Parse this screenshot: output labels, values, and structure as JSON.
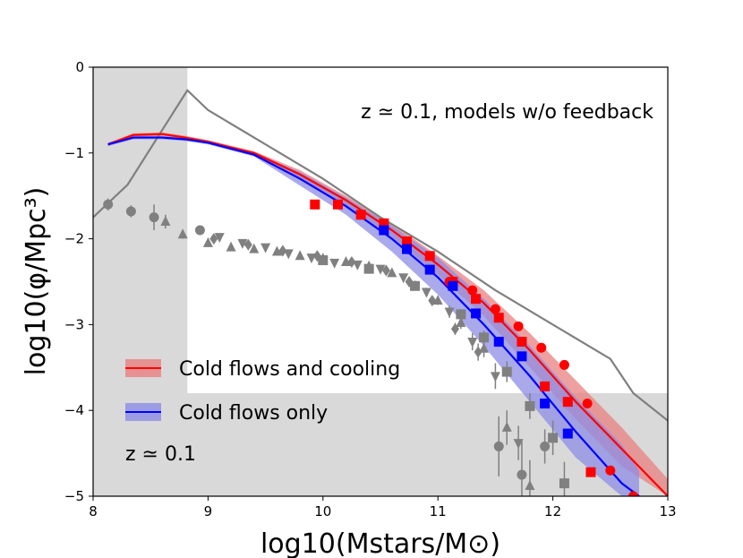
{
  "chart_data": {
    "type": "scatter",
    "title": "",
    "xlabel": "log10(Mstars/M⊙)",
    "ylabel": "log10(φ/Mpc³)",
    "xlim": [
      8,
      13
    ],
    "ylim": [
      -5,
      0
    ],
    "x_ticks": [
      "8",
      "9",
      "10",
      "11",
      "12",
      "13"
    ],
    "y_ticks": [
      "0",
      "−1",
      "−2",
      "−3",
      "−4",
      "−5"
    ],
    "annotation_top": "z ≃ 0.1, models w/o feedback",
    "annotation_bottom": "z ≃ 0.1",
    "legend": {
      "position": "lower-left",
      "entries": [
        "Cold flows and cooling",
        "Cold flows only"
      ]
    },
    "excluded_regions": [
      {
        "x": [
          8,
          8.82
        ],
        "y": [
          -5,
          0
        ],
        "color": "#d9d9d9"
      },
      {
        "x": [
          8,
          13
        ],
        "y": [
          -5,
          -3.8
        ],
        "color": "#d9d9d9"
      }
    ],
    "colors": {
      "red": "#ff0000",
      "blue": "#0000ff",
      "grey": "#808080",
      "red_band": "#e88080",
      "blue_band": "#8c8ce6",
      "shade": "#d9d9d9"
    },
    "series": [
      {
        "name": "Gray model (no cooling)",
        "kind": "line",
        "color": "#808080",
        "x": [
          8.0,
          8.3,
          8.82,
          9.0,
          9.5,
          10.0,
          10.5,
          11.0,
          11.5,
          12.0,
          12.5,
          12.7,
          13.0
        ],
        "y": [
          -1.75,
          -1.37,
          -0.27,
          -0.5,
          -0.9,
          -1.3,
          -1.75,
          -2.15,
          -2.6,
          -3.0,
          -3.4,
          -3.8,
          -4.12
        ]
      },
      {
        "name": "Cold flows and cooling",
        "kind": "line",
        "color": "#ff0000",
        "x": [
          8.13,
          8.35,
          8.6,
          8.8,
          9.0,
          9.4,
          9.8,
          10.2,
          10.6,
          11.0,
          11.4,
          11.8,
          12.2,
          12.6,
          13.0
        ],
        "y": [
          -0.9,
          -0.79,
          -0.78,
          -0.82,
          -0.87,
          -1.0,
          -1.25,
          -1.55,
          -1.9,
          -2.3,
          -2.75,
          -3.3,
          -3.9,
          -4.45,
          -5.0
        ],
        "band_upper": [
          -0.88,
          -0.77,
          -0.76,
          -0.8,
          -0.85,
          -0.98,
          -1.2,
          -1.5,
          -1.82,
          -2.2,
          -2.6,
          -3.1,
          -3.65,
          -4.2,
          -4.8
        ],
        "band_lower": [
          -0.92,
          -0.81,
          -0.8,
          -0.84,
          -0.89,
          -1.02,
          -1.3,
          -1.62,
          -1.98,
          -2.42,
          -2.9,
          -3.5,
          -4.1,
          -4.65,
          -5.0
        ]
      },
      {
        "name": "Cold flows only",
        "kind": "line",
        "color": "#0000ff",
        "x": [
          8.13,
          8.35,
          8.6,
          8.8,
          9.0,
          9.4,
          9.8,
          10.2,
          10.6,
          11.0,
          11.4,
          11.8,
          12.2,
          12.6,
          12.75
        ],
        "y": [
          -0.9,
          -0.82,
          -0.82,
          -0.84,
          -0.88,
          -1.02,
          -1.3,
          -1.62,
          -2.0,
          -2.45,
          -3.0,
          -3.6,
          -4.25,
          -4.85,
          -5.0
        ],
        "band_upper": [
          -0.88,
          -0.8,
          -0.8,
          -0.82,
          -0.86,
          -1.0,
          -1.22,
          -1.52,
          -1.85,
          -2.22,
          -2.7,
          -3.25,
          -3.85,
          -4.4,
          -4.7
        ],
        "band_lower": [
          -0.92,
          -0.84,
          -0.84,
          -0.86,
          -0.9,
          -1.04,
          -1.38,
          -1.72,
          -2.15,
          -2.65,
          -3.25,
          -3.9,
          -4.55,
          -5.0,
          -5.0
        ]
      },
      {
        "name": "Red squares",
        "kind": "markers",
        "marker": "square",
        "color": "#ff0000",
        "x": [
          9.93,
          10.13,
          10.33,
          10.53,
          10.73,
          10.93,
          11.13,
          11.33,
          11.53,
          11.73,
          11.93,
          12.13,
          12.33
        ],
        "y": [
          -1.6,
          -1.6,
          -1.72,
          -1.82,
          -2.03,
          -2.2,
          -2.5,
          -2.7,
          -2.92,
          -3.2,
          -3.72,
          -3.9,
          -4.72
        ]
      },
      {
        "name": "Red circles",
        "kind": "markers",
        "marker": "circle",
        "color": "#ff0000",
        "x": [
          11.1,
          11.3,
          11.5,
          11.7,
          11.9,
          12.1,
          12.3,
          12.5,
          12.7
        ],
        "y": [
          -2.5,
          -2.6,
          -2.82,
          -3.02,
          -3.27,
          -3.47,
          -3.92,
          -4.7,
          -5.0
        ]
      },
      {
        "name": "Blue squares",
        "kind": "markers",
        "marker": "square",
        "color": "#0000ff",
        "x": [
          10.53,
          10.73,
          10.93,
          11.13,
          11.33,
          11.53,
          11.73,
          11.93,
          12.13
        ],
        "y": [
          -1.9,
          -2.12,
          -2.36,
          -2.55,
          -2.87,
          -3.2,
          -3.37,
          -3.92,
          -4.27
        ]
      },
      {
        "name": "Observations (circles)",
        "kind": "markers",
        "marker": "circle",
        "color": "#808080",
        "x": [
          8.13,
          8.33,
          8.53,
          8.93,
          11.53,
          11.73,
          11.93
        ],
        "y": [
          -1.6,
          -1.68,
          -1.75,
          -1.9,
          -4.42,
          -4.75,
          -4.42
        ],
        "err": [
          0.07,
          0.07,
          0.15,
          0.05,
          0.35,
          0.4,
          0.2
        ]
      },
      {
        "name": "Observations (triangles up)",
        "kind": "markers",
        "marker": "triangle-up",
        "color": "#808080",
        "x": [
          8.63,
          8.78,
          9.0,
          9.2,
          9.4,
          9.6,
          9.8,
          10.0,
          10.2,
          10.4,
          10.6,
          10.8,
          11.0,
          11.2,
          11.4,
          11.6,
          11.8
        ],
        "y": [
          -1.8,
          -1.95,
          -2.05,
          -2.1,
          -2.12,
          -2.15,
          -2.2,
          -2.23,
          -2.27,
          -2.32,
          -2.4,
          -2.55,
          -2.72,
          -2.98,
          -3.28,
          -4.2,
          -4.88
        ],
        "err": [
          0.08,
          0.05,
          0.03,
          0.03,
          0.03,
          0.03,
          0.03,
          0.03,
          0.03,
          0.03,
          0.03,
          0.04,
          0.05,
          0.07,
          0.1,
          0.2,
          0.3
        ]
      },
      {
        "name": "Observations (triangles down)",
        "kind": "markers",
        "marker": "triangle-down",
        "color": "#808080",
        "x": [
          9.1,
          9.3,
          9.5,
          9.7,
          9.9,
          10.1,
          10.3,
          10.5,
          10.7,
          10.9,
          11.1,
          11.3,
          11.5,
          11.7
        ],
        "y": [
          -1.98,
          -2.05,
          -2.1,
          -2.17,
          -2.22,
          -2.28,
          -2.3,
          -2.35,
          -2.45,
          -2.62,
          -2.85,
          -3.2,
          -3.6,
          -4.38
        ],
        "err": [
          0.03,
          0.03,
          0.03,
          0.03,
          0.03,
          0.03,
          0.03,
          0.03,
          0.04,
          0.05,
          0.07,
          0.1,
          0.15,
          0.2
        ]
      },
      {
        "name": "Observations (diamonds)",
        "kind": "markers",
        "marker": "diamond",
        "color": "#808080",
        "x": [
          9.05,
          9.35,
          9.65,
          9.95,
          10.25,
          10.55,
          10.75,
          10.95,
          11.15,
          11.35
        ],
        "y": [
          -2.0,
          -2.07,
          -2.14,
          -2.2,
          -2.27,
          -2.37,
          -2.5,
          -2.72,
          -3.05,
          -3.32
        ],
        "err": [
          0.03,
          0.03,
          0.03,
          0.03,
          0.03,
          0.03,
          0.04,
          0.05,
          0.07,
          0.1
        ]
      },
      {
        "name": "Observations (squares)",
        "kind": "markers",
        "marker": "square",
        "color": "#808080",
        "x": [
          10.0,
          10.4,
          10.8,
          11.2,
          11.4,
          11.6,
          11.8,
          12.0,
          12.1
        ],
        "y": [
          -2.25,
          -2.35,
          -2.55,
          -2.88,
          -3.15,
          -3.55,
          -3.95,
          -4.32,
          -4.85
        ],
        "err": [
          0.03,
          0.03,
          0.04,
          0.06,
          0.08,
          0.12,
          0.15,
          0.2,
          0.25
        ]
      }
    ]
  }
}
